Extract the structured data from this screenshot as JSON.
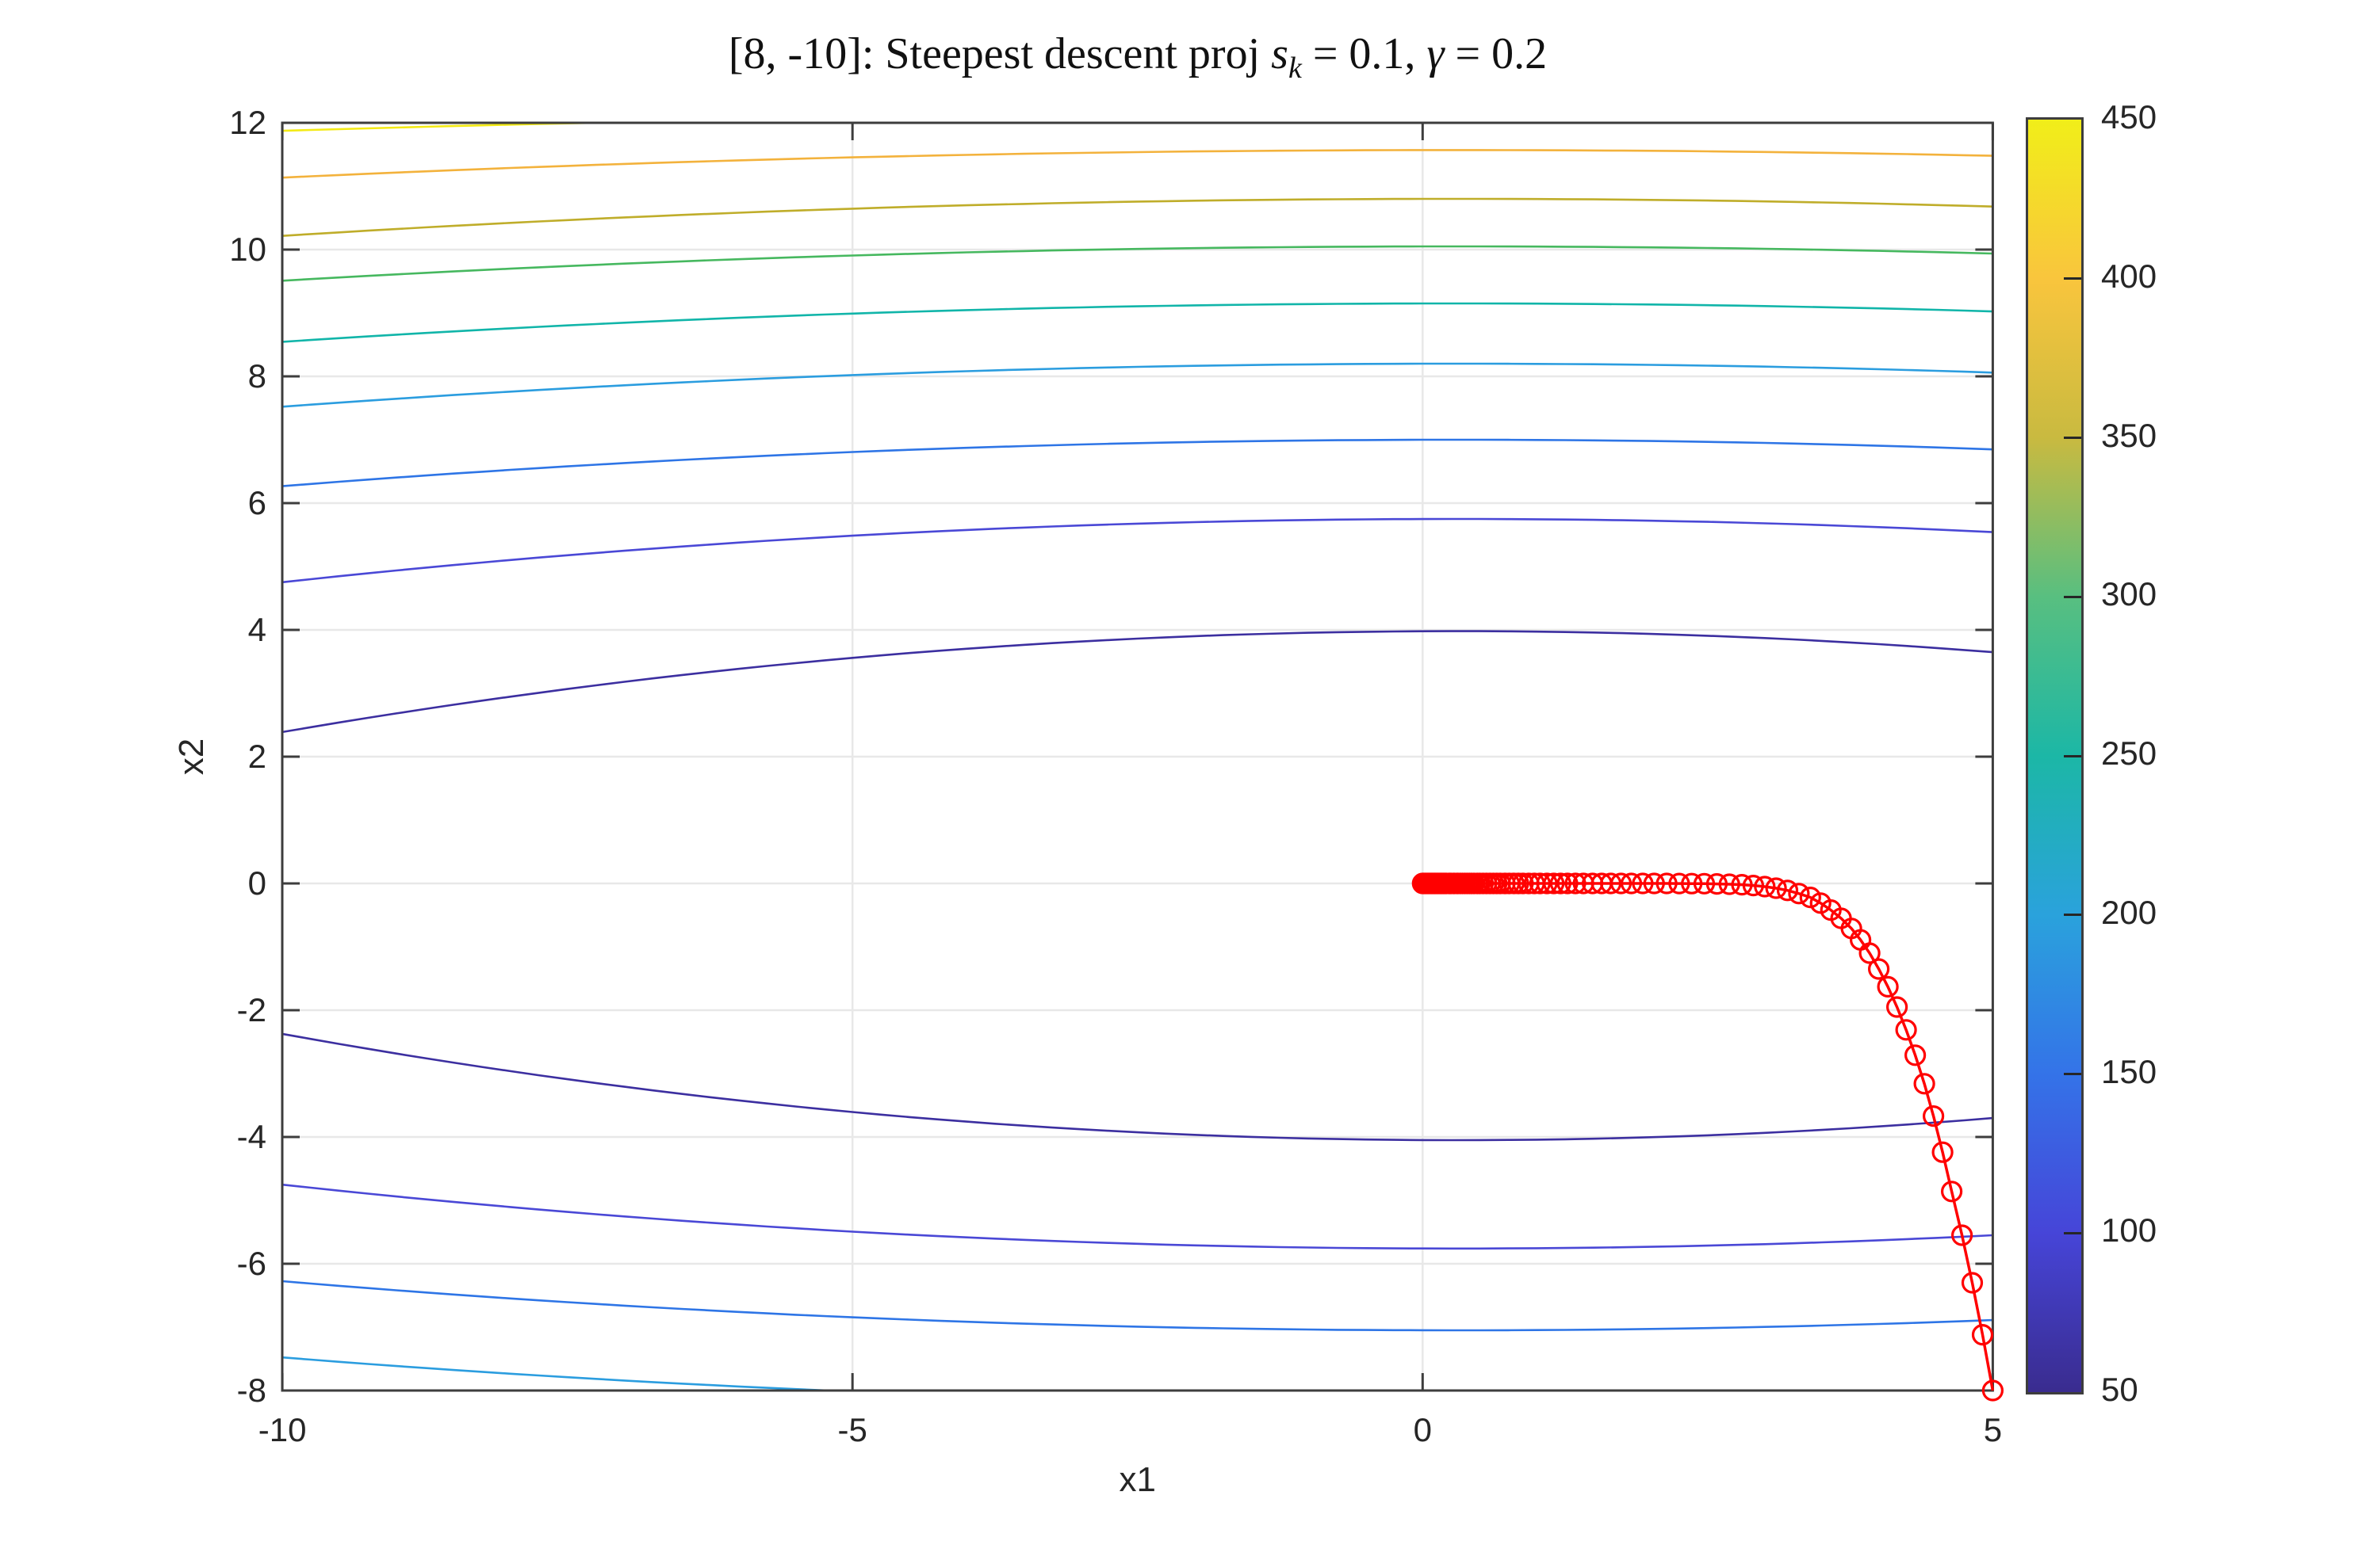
{
  "title": {
    "prefix": "[8, -10]: Steepest descent proj ",
    "s_var": "s",
    "s_sub": "k",
    "mid": " = 0.1, ",
    "gamma": "γ",
    "end": " = 0.2"
  },
  "axes": {
    "xlabel": "x1",
    "ylabel": "x2",
    "xlim": [
      -10,
      5
    ],
    "ylim": [
      -8,
      12
    ],
    "xticks": [
      -10,
      -5,
      0,
      5
    ],
    "yticks": [
      -8,
      -6,
      -4,
      -2,
      0,
      2,
      4,
      6,
      8,
      10,
      12
    ],
    "grid": true
  },
  "colorbar": {
    "min": 50,
    "max": 450,
    "tick_labels": [
      50,
      100,
      150,
      200,
      250,
      300,
      350,
      400,
      450
    ],
    "stops": [
      {
        "value": 50,
        "color": "#3a2c8f"
      },
      {
        "value": 100,
        "color": "#4645d8"
      },
      {
        "value": 150,
        "color": "#3473e8"
      },
      {
        "value": 200,
        "color": "#2aa2dc"
      },
      {
        "value": 250,
        "color": "#1cb7a6"
      },
      {
        "value": 300,
        "color": "#58bf80"
      },
      {
        "value": 350,
        "color": "#c9ba40"
      },
      {
        "value": 400,
        "color": "#f9c53d"
      },
      {
        "value": 450,
        "color": "#f1ee19"
      }
    ]
  },
  "style": {
    "background": "#ffffff",
    "axis_color": "#3d3d3d",
    "text_color": "#262626",
    "grid_color": "#e8e8e8",
    "trajectory_color": "#ff0000"
  },
  "chart_data": {
    "type": "contour+trajectory",
    "levels": [
      50,
      100,
      150,
      200,
      250,
      300,
      350,
      400,
      450
    ],
    "contours": [
      {
        "level": 450,
        "color": "#f3ea15",
        "sign": 1,
        "x0": 0.3,
        "peak": 12.15,
        "k": 0.0026
      },
      {
        "level": 400,
        "color": "#f3b23c",
        "sign": 1,
        "x0": 0.3,
        "peak": 11.57,
        "k": 0.0041
      },
      {
        "level": 350,
        "color": "#bfad2a",
        "sign": 1,
        "x0": 0.3,
        "peak": 10.8,
        "k": 0.0055
      },
      {
        "level": 300,
        "color": "#46b85f",
        "sign": 1,
        "x0": 0.3,
        "peak": 10.05,
        "k": 0.0051
      },
      {
        "level": 250,
        "color": "#11b5a9",
        "sign": 1,
        "x0": 0.3,
        "peak": 9.15,
        "k": 0.0057
      },
      {
        "level": 200,
        "color": "#2b9ddf",
        "sign": 1,
        "x0": 0.3,
        "peak": 8.2,
        "k": 0.0064
      },
      {
        "level": 150,
        "color": "#2e75e6",
        "sign": 1,
        "x0": 0.3,
        "peak": 7.0,
        "k": 0.0069
      },
      {
        "level": 100,
        "color": "#4a48d6",
        "sign": 1,
        "x0": 0.3,
        "peak": 5.75,
        "k": 0.0094
      },
      {
        "level": 50,
        "color": "#3c2fa0",
        "sign": 1,
        "x0": 0.3,
        "peak": 3.98,
        "k": 0.015
      },
      {
        "level": 50,
        "color": "#3c2fa0",
        "sign": -1,
        "x0": 0.3,
        "peak": 4.05,
        "k": 0.0158
      },
      {
        "level": 100,
        "color": "#4a48d6",
        "sign": -1,
        "x0": 0.3,
        "peak": 5.76,
        "k": 0.0095
      },
      {
        "level": 150,
        "color": "#2e75e6",
        "sign": -1,
        "x0": 0.3,
        "peak": 7.05,
        "k": 0.0073
      },
      {
        "level": 200,
        "color": "#2b9ddf",
        "sign": -1,
        "x0": 0.3,
        "peak": 8.21,
        "k": 0.0069
      }
    ],
    "trajectory": {
      "start_label": "[8, -10]",
      "color": "#ff0000",
      "marker": "o",
      "points": [
        [
          5.0,
          -8.0
        ],
        [
          4.91,
          -7.12
        ],
        [
          4.82,
          -6.3
        ],
        [
          4.73,
          -5.55
        ],
        [
          4.64,
          -4.86
        ],
        [
          4.56,
          -4.24
        ],
        [
          4.48,
          -3.67
        ],
        [
          4.4,
          -3.16
        ],
        [
          4.32,
          -2.71
        ],
        [
          4.24,
          -2.31
        ],
        [
          4.16,
          -1.95
        ],
        [
          4.08,
          -1.63
        ],
        [
          4.0,
          -1.35
        ],
        [
          3.92,
          -1.1
        ],
        [
          3.84,
          -0.89
        ],
        [
          3.76,
          -0.71
        ],
        [
          3.67,
          -0.55
        ],
        [
          3.58,
          -0.42
        ],
        [
          3.49,
          -0.31
        ],
        [
          3.4,
          -0.22
        ],
        [
          3.3,
          -0.16
        ],
        [
          3.2,
          -0.11
        ],
        [
          3.1,
          -0.075
        ],
        [
          3.0,
          -0.05
        ],
        [
          2.9,
          -0.032
        ],
        [
          2.8,
          -0.02
        ],
        [
          2.69,
          -0.012
        ],
        [
          2.58,
          -0.007
        ],
        [
          2.47,
          -0.004
        ],
        [
          2.36,
          -0.002
        ],
        [
          2.25,
          -0.001
        ],
        [
          2.14,
          0
        ],
        [
          2.03,
          0
        ],
        [
          1.93,
          0
        ],
        [
          1.83,
          0
        ],
        [
          1.74,
          0
        ],
        [
          1.65,
          0
        ],
        [
          1.57,
          0
        ],
        [
          1.49,
          0
        ],
        [
          1.41,
          0
        ],
        [
          1.34,
          0
        ],
        [
          1.27,
          0
        ],
        [
          1.21,
          0
        ],
        [
          1.15,
          0
        ],
        [
          1.09,
          0
        ],
        [
          1.03,
          0
        ],
        [
          0.98,
          0
        ],
        [
          0.93,
          0
        ],
        [
          0.88,
          0
        ],
        [
          0.84,
          0
        ],
        [
          0.8,
          0
        ],
        [
          0.76,
          0
        ],
        [
          0.72,
          0
        ],
        [
          0.68,
          0
        ],
        [
          0.65,
          0
        ],
        [
          0.62,
          0
        ],
        [
          0.59,
          0
        ],
        [
          0.56,
          0
        ],
        [
          0.53,
          0
        ],
        [
          0.5,
          0
        ],
        [
          0.48,
          0
        ],
        [
          0.45,
          0
        ],
        [
          0.43,
          0
        ],
        [
          0.41,
          0
        ],
        [
          0.39,
          0
        ],
        [
          0.37,
          0
        ],
        [
          0.35,
          0
        ],
        [
          0.33,
          0
        ],
        [
          0.31,
          0
        ],
        [
          0.3,
          0
        ],
        [
          0.28,
          0
        ],
        [
          0.27,
          0
        ],
        [
          0.25,
          0
        ],
        [
          0.24,
          0
        ],
        [
          0.23,
          0
        ],
        [
          0.21,
          0
        ],
        [
          0.2,
          0
        ],
        [
          0.19,
          0
        ],
        [
          0.18,
          0
        ],
        [
          0.17,
          0
        ],
        [
          0.16,
          0
        ],
        [
          0.15,
          0
        ],
        [
          0.14,
          0
        ],
        [
          0.13,
          0
        ],
        [
          0.12,
          0
        ],
        [
          0.11,
          0
        ],
        [
          0.1,
          0
        ],
        [
          0.09,
          0
        ],
        [
          0.08,
          0
        ],
        [
          0.07,
          0
        ],
        [
          0.06,
          0
        ],
        [
          0.05,
          0
        ],
        [
          0.04,
          0
        ],
        [
          0.03,
          0
        ],
        [
          0.02,
          0
        ],
        [
          0.01,
          0
        ],
        [
          0.0,
          0
        ]
      ]
    }
  }
}
